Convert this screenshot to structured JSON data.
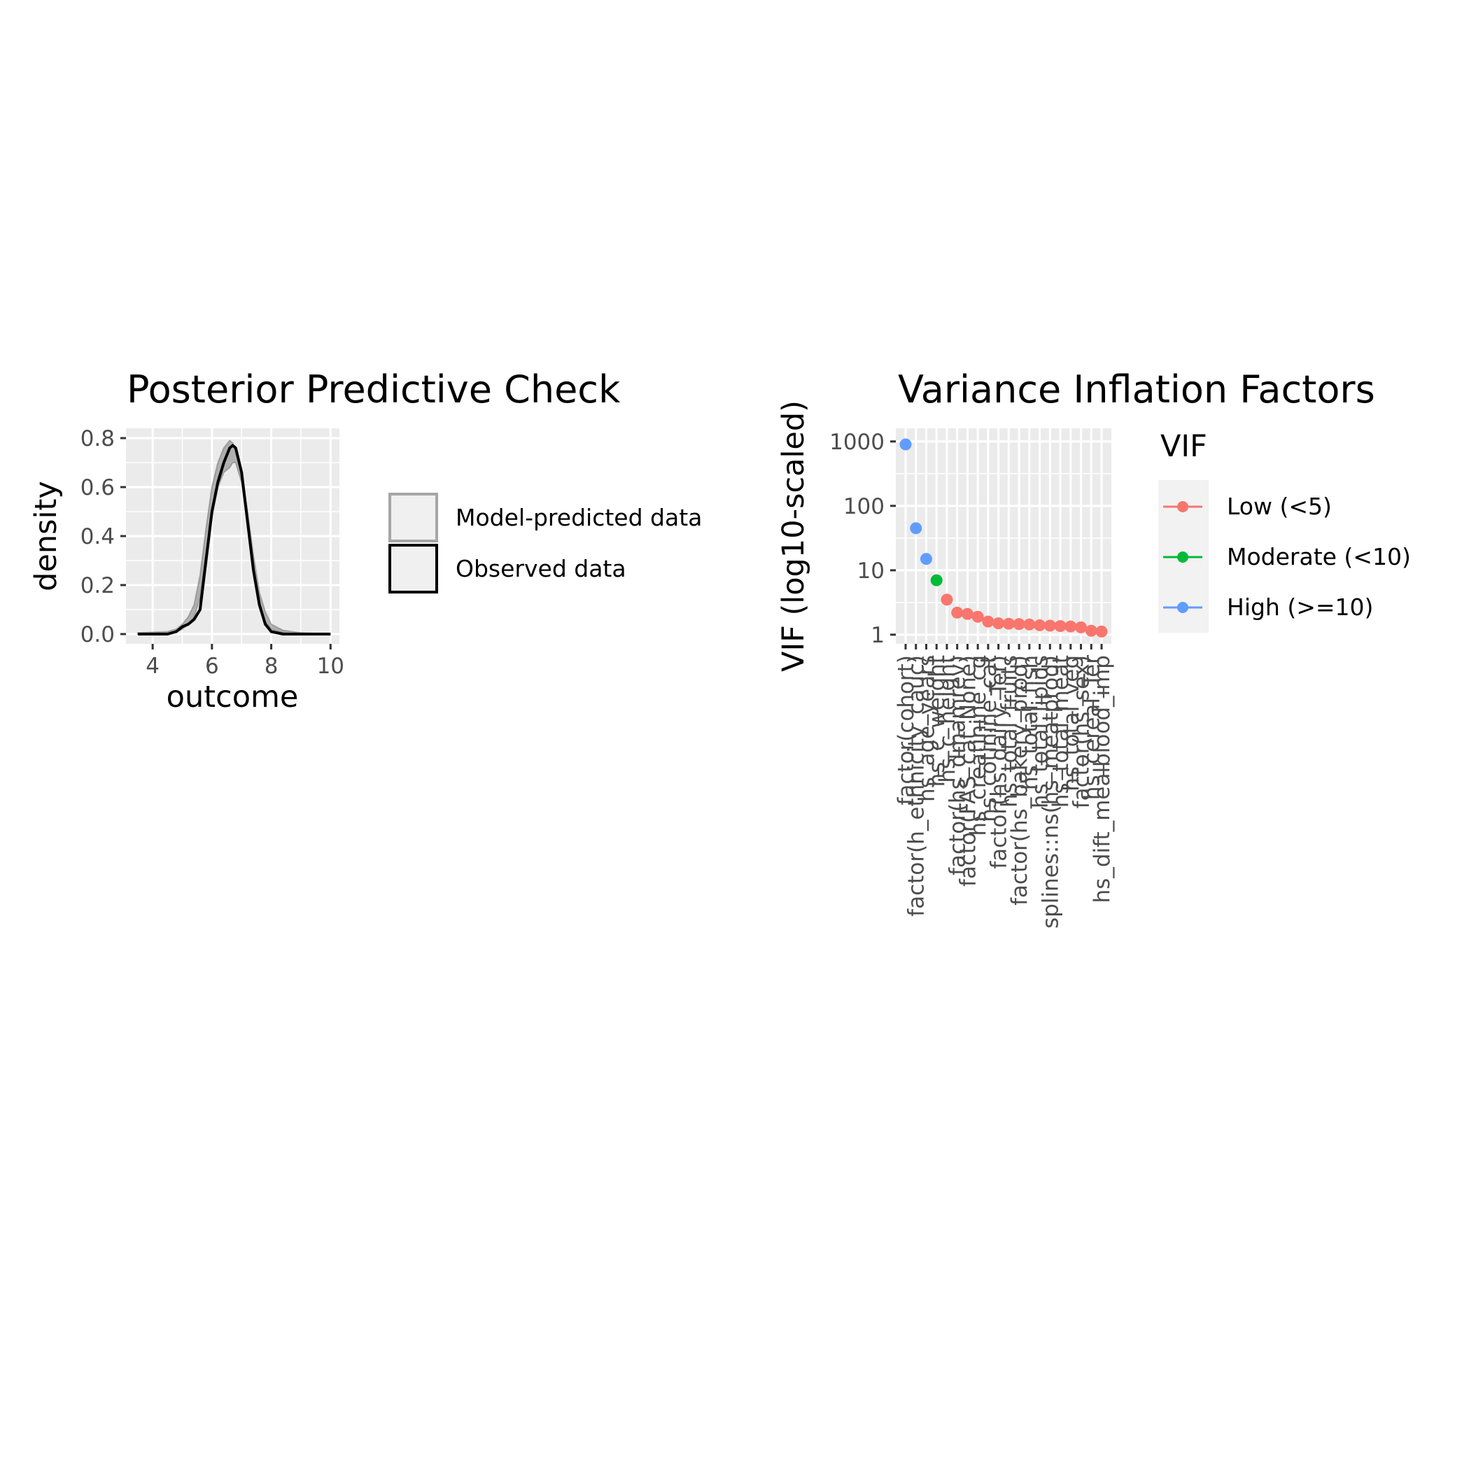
{
  "chart_data": [
    {
      "type": "area",
      "title": "Posterior Predictive Check",
      "xlabel": "outcome",
      "ylabel": "density",
      "xlim": [
        3.1,
        10.3
      ],
      "ylim": [
        -0.04,
        0.84
      ],
      "xticks": [
        4,
        6,
        8,
        10
      ],
      "yticks": [
        0.0,
        0.2,
        0.4,
        0.6,
        0.8
      ],
      "ytick_labels": [
        "0.0",
        "0.2",
        "0.4",
        "0.6",
        "0.8"
      ],
      "grid": true,
      "legend": {
        "position": "right",
        "entries": [
          "Model-predicted data",
          "Observed data"
        ]
      },
      "series": [
        {
          "name": "Model-predicted data",
          "color": "#7f7f7f",
          "x": [
            3.5,
            4.5,
            4.8,
            5.0,
            5.2,
            5.4,
            5.6,
            5.8,
            6.0,
            6.2,
            6.4,
            6.6,
            6.7,
            6.8,
            7.0,
            7.2,
            7.4,
            7.6,
            7.8,
            8.0,
            8.4,
            9.0,
            10.0
          ],
          "lower": [
            0.0,
            0.0,
            0.01,
            0.02,
            0.04,
            0.07,
            0.15,
            0.33,
            0.48,
            0.6,
            0.66,
            0.68,
            0.7,
            0.7,
            0.62,
            0.46,
            0.26,
            0.12,
            0.05,
            0.02,
            0.005,
            0.0,
            0.0
          ],
          "upper": [
            0.005,
            0.01,
            0.02,
            0.04,
            0.07,
            0.12,
            0.24,
            0.43,
            0.6,
            0.7,
            0.76,
            0.79,
            0.78,
            0.75,
            0.65,
            0.5,
            0.32,
            0.17,
            0.09,
            0.04,
            0.015,
            0.005,
            0.0
          ]
        },
        {
          "name": "Observed data",
          "color": "#000000",
          "x": [
            3.5,
            4.5,
            4.8,
            5.0,
            5.2,
            5.4,
            5.6,
            5.8,
            6.0,
            6.2,
            6.4,
            6.6,
            6.7,
            6.8,
            7.0,
            7.2,
            7.4,
            7.6,
            7.8,
            8.0,
            8.4,
            9.0,
            10.0
          ],
          "y": [
            0.0,
            0.0,
            0.01,
            0.03,
            0.04,
            0.06,
            0.1,
            0.3,
            0.5,
            0.62,
            0.7,
            0.76,
            0.77,
            0.76,
            0.66,
            0.46,
            0.26,
            0.12,
            0.04,
            0.01,
            0.0,
            0.0,
            0.0
          ]
        }
      ]
    },
    {
      "type": "scatter",
      "title": "Variance Inflation Factors",
      "xlabel": "",
      "ylabel": "VIF (log10-scaled)",
      "yscale": "log10",
      "ylim": [
        0.72,
        1600
      ],
      "yticks": [
        1,
        10,
        100,
        1000
      ],
      "ytick_labels": [
        "1",
        "10",
        "100",
        "1000"
      ],
      "grid": true,
      "legend": {
        "title": "VIF",
        "position": "right",
        "entries": [
          {
            "label": "Low (<5)",
            "color": "#F8766D"
          },
          {
            "label": "Moderate (<10)",
            "color": "#00BA38"
          },
          {
            "label": "High (>=10)",
            "color": "#619CFF"
          }
        ]
      },
      "categories": [
        "factor(cohort)",
        "factor(h_ethnicity_cauc)",
        "hs_age_years",
        "hs_c_weight",
        "hs_c_height",
        "factor(hs_dmamrev)",
        "factor(FAS_cat_None)",
        "hs_creatinine_cg",
        "hs_cotinine_cat",
        "factor(hs_dairy_Ter)",
        "hs_total_fruits",
        "factor(hs_bakery_prod)",
        "hs_total_fish",
        "hs_total_lipids",
        "splines::ns(hs_meatprod)",
        "hs_total_meat",
        "hs_total_veg",
        "factor(hs_sex)",
        "hs_cereal_Ter",
        "hs_dift_mealblood_imp"
      ],
      "values": [
        900,
        45,
        15,
        7,
        3.5,
        2.2,
        2.1,
        1.9,
        1.6,
        1.5,
        1.48,
        1.46,
        1.44,
        1.4,
        1.38,
        1.36,
        1.34,
        1.3,
        1.15,
        1.12
      ],
      "point_colors": [
        "#619CFF",
        "#619CFF",
        "#619CFF",
        "#00BA38",
        "#F8766D",
        "#F8766D",
        "#F8766D",
        "#F8766D",
        "#F8766D",
        "#F8766D",
        "#F8766D",
        "#F8766D",
        "#F8766D",
        "#F8766D",
        "#F8766D",
        "#F8766D",
        "#F8766D",
        "#F8766D",
        "#F8766D",
        "#F8766D"
      ]
    }
  ]
}
